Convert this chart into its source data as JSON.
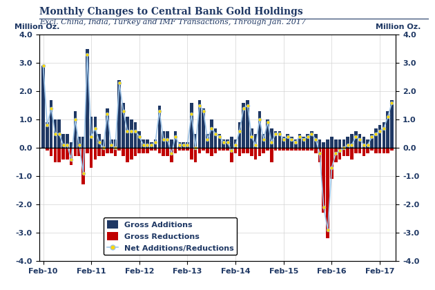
{
  "title": "Monthly Changes to Central Bank Gold Holdings",
  "subtitle": "Excl. China, India, Turkey and IMF Transactions, Through Jan. 2017",
  "ylabel_left": "Million Oz.",
  "ylabel_right": "Million Oz.",
  "ylim": [
    -4.0,
    4.0
  ],
  "yticks": [
    -4.0,
    -3.0,
    -2.0,
    -1.0,
    0.0,
    1.0,
    2.0,
    3.0,
    4.0
  ],
  "xtick_labels": [
    "Feb-10",
    "Feb-11",
    "Feb-12",
    "Feb-13",
    "Feb-14",
    "Feb-15",
    "Feb-16",
    "Feb-17"
  ],
  "title_color": "#1F3864",
  "bar_addition_color": "#1F3864",
  "bar_reduction_color": "#C00000",
  "line_color": "#9DC3E6",
  "marker_color": "#FFD700",
  "legend_additions": "Gross Additions",
  "legend_reductions": "Gross Reductions",
  "legend_net": "Net Additions/Reductions",
  "gross_additions": [
    2.9,
    0.9,
    1.7,
    1.0,
    1.0,
    0.5,
    0.5,
    0.2,
    1.3,
    0.4,
    0.4,
    3.5,
    1.1,
    1.1,
    0.5,
    0.3,
    1.4,
    0.3,
    0.3,
    2.4,
    1.6,
    1.1,
    1.0,
    0.9,
    0.6,
    0.3,
    0.3,
    0.2,
    0.3,
    1.5,
    0.6,
    0.6,
    0.3,
    0.6,
    0.2,
    0.2,
    0.2,
    1.6,
    0.5,
    1.7,
    1.4,
    0.5,
    1.0,
    0.7,
    0.5,
    0.3,
    0.3,
    0.4,
    0.3,
    0.9,
    1.6,
    1.7,
    0.7,
    0.5,
    1.3,
    0.5,
    1.0,
    0.7,
    0.6,
    0.6,
    0.4,
    0.5,
    0.4,
    0.3,
    0.5,
    0.4,
    0.5,
    0.6,
    0.5,
    0.3,
    0.2,
    0.3,
    0.4,
    0.3,
    0.3,
    0.3,
    0.4,
    0.5,
    0.6,
    0.5,
    0.4,
    0.3,
    0.5,
    0.7,
    0.8,
    0.9,
    1.3,
    1.7
  ],
  "gross_reductions": [
    0.0,
    -0.1,
    -0.3,
    -0.5,
    -0.5,
    -0.4,
    -0.4,
    -0.6,
    -0.3,
    -0.3,
    -1.3,
    -0.2,
    -0.7,
    -0.4,
    -0.3,
    -0.3,
    -0.2,
    -0.2,
    -0.3,
    -0.1,
    -0.3,
    -0.5,
    -0.4,
    -0.3,
    -0.2,
    -0.2,
    -0.2,
    -0.1,
    -0.1,
    -0.2,
    -0.3,
    -0.3,
    -0.5,
    -0.2,
    -0.1,
    -0.1,
    -0.1,
    -0.4,
    -0.5,
    -0.2,
    -0.1,
    -0.2,
    -0.3,
    -0.2,
    -0.1,
    -0.1,
    -0.1,
    -0.5,
    -0.2,
    -0.3,
    -0.2,
    -0.2,
    -0.3,
    -0.4,
    -0.3,
    -0.2,
    -0.1,
    -0.5,
    -0.1,
    -0.1,
    -0.1,
    -0.1,
    -0.1,
    -0.1,
    -0.1,
    -0.1,
    -0.1,
    -0.1,
    -0.2,
    -0.5,
    -2.3,
    -3.2,
    -1.1,
    -0.5,
    -0.4,
    -0.3,
    -0.3,
    -0.4,
    -0.2,
    -0.2,
    -0.3,
    -0.2,
    -0.1,
    -0.2,
    -0.2,
    -0.2,
    -0.2,
    -0.1
  ],
  "net_additions": [
    2.9,
    0.8,
    1.4,
    0.5,
    0.5,
    0.1,
    0.1,
    -0.4,
    1.0,
    0.1,
    -0.9,
    3.3,
    0.4,
    0.7,
    0.2,
    0.0,
    1.2,
    0.1,
    0.0,
    2.3,
    1.3,
    0.6,
    0.6,
    0.6,
    0.4,
    0.1,
    0.1,
    0.1,
    0.2,
    1.3,
    0.3,
    0.3,
    -0.2,
    0.4,
    0.1,
    0.1,
    0.1,
    1.2,
    0.0,
    1.5,
    1.3,
    0.3,
    0.7,
    0.5,
    0.4,
    0.2,
    0.2,
    -0.1,
    0.1,
    0.6,
    1.4,
    1.5,
    0.4,
    0.1,
    1.0,
    0.3,
    0.9,
    0.2,
    0.5,
    0.5,
    0.3,
    0.4,
    0.3,
    0.2,
    0.4,
    0.3,
    0.4,
    0.5,
    0.3,
    -0.2,
    -2.1,
    -2.9,
    -0.7,
    -0.2,
    -0.1,
    0.0,
    0.1,
    0.1,
    0.4,
    0.3,
    0.1,
    0.1,
    0.4,
    0.5,
    0.6,
    0.7,
    1.1,
    1.6
  ],
  "n_months": 88,
  "xtick_positions": [
    0,
    12,
    24,
    36,
    48,
    60,
    72,
    84
  ]
}
